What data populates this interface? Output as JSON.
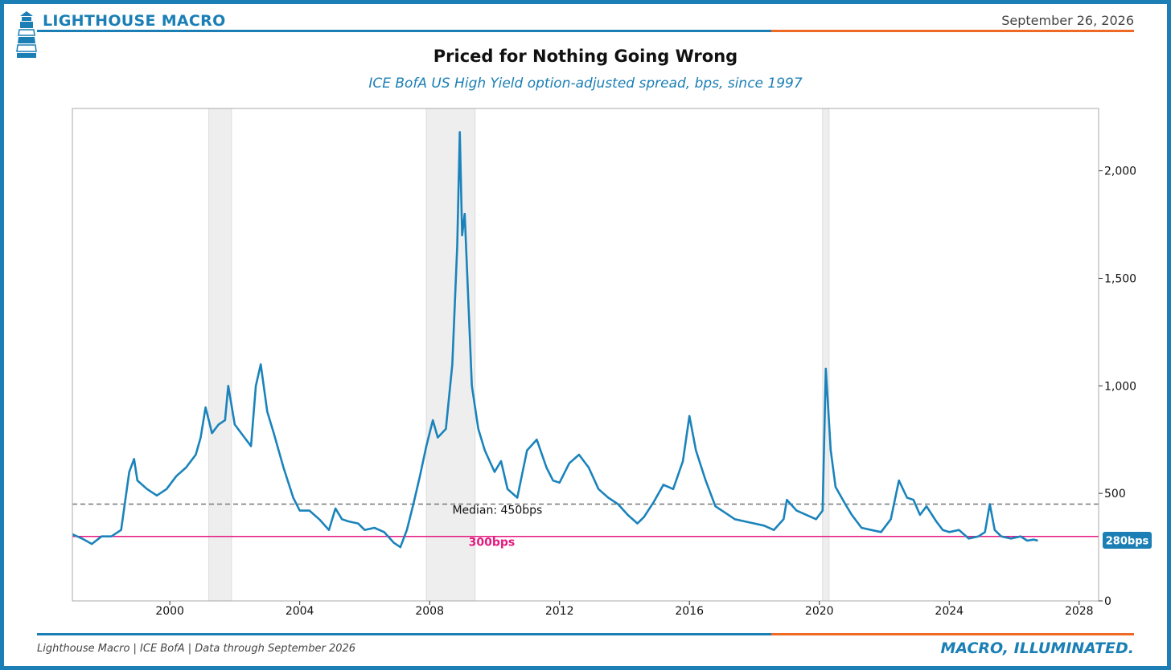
{
  "header": {
    "brand": "LIGHTHOUSE MACRO",
    "date": "September 26, 2026"
  },
  "footer": {
    "source": "Lighthouse Macro | ICE BofA | Data through September 2026",
    "tagline": "MACRO, ILLUMINATED."
  },
  "colors": {
    "brand_blue": "#1b7fb5",
    "accent_orange": "#ee6a24",
    "series": "#1a83bb",
    "threshold": "#e6187f",
    "median": "#777777",
    "recession": "#eeeeee"
  },
  "chart_data": {
    "type": "line",
    "title": "Priced for Nothing Going Wrong",
    "subtitle": "ICE BofA US High Yield option-adjusted spread, bps, since 1997",
    "xlabel": "",
    "ylabel": "",
    "xlim": [
      1997.0,
      2028.6
    ],
    "ylim": [
      0,
      2290
    ],
    "x_ticks": [
      2000,
      2004,
      2008,
      2012,
      2016,
      2020,
      2024,
      2028
    ],
    "x_tick_labels": [
      "2000",
      "2004",
      "2008",
      "2012",
      "2016",
      "2020",
      "2024",
      "2028"
    ],
    "y_ticks": [
      0,
      500,
      1000,
      1500,
      2000
    ],
    "y_tick_labels": [
      "0",
      "500",
      "1,000",
      "1,500",
      "2,000"
    ],
    "y_axis_side": "right",
    "grid": false,
    "recessions": [
      [
        2001.2,
        2001.9
      ],
      [
        2007.9,
        2009.4
      ],
      [
        2020.1,
        2020.3
      ]
    ],
    "reference_lines": [
      {
        "label": "Median: 450bps",
        "value": 450,
        "style": "dashed"
      },
      {
        "label": "300bps",
        "value": 300,
        "style": "solid"
      }
    ],
    "last_value_label": "280bps",
    "series": [
      {
        "x": [
          1997.0,
          1997.3,
          1997.6,
          1997.9,
          1998.2,
          1998.5,
          1998.75,
          1998.9,
          1999.0,
          1999.3,
          1999.6,
          1999.9,
          2000.2,
          2000.5,
          2000.8,
          2000.95,
          2001.1,
          2001.3,
          2001.5,
          2001.7,
          2001.8,
          2002.0,
          2002.3,
          2002.5,
          2002.65,
          2002.8,
          2003.0,
          2003.2,
          2003.5,
          2003.8,
          2004.0,
          2004.3,
          2004.6,
          2004.9,
          2005.1,
          2005.3,
          2005.5,
          2005.8,
          2006.0,
          2006.3,
          2006.6,
          2006.9,
          2007.1,
          2007.3,
          2007.5,
          2007.7,
          2007.9,
          2008.1,
          2008.25,
          2008.5,
          2008.7,
          2008.85,
          2008.93,
          2009.0,
          2009.08,
          2009.15,
          2009.3,
          2009.5,
          2009.7,
          2010.0,
          2010.2,
          2010.4,
          2010.7,
          2011.0,
          2011.3,
          2011.6,
          2011.8,
          2012.0,
          2012.3,
          2012.6,
          2012.9,
          2013.2,
          2013.5,
          2013.8,
          2014.1,
          2014.4,
          2014.6,
          2014.9,
          2015.2,
          2015.5,
          2015.8,
          2016.0,
          2016.2,
          2016.5,
          2016.8,
          2017.1,
          2017.4,
          2017.7,
          2018.0,
          2018.3,
          2018.6,
          2018.9,
          2019.0,
          2019.3,
          2019.6,
          2019.9,
          2020.1,
          2020.2,
          2020.35,
          2020.5,
          2020.8,
          2021.0,
          2021.3,
          2021.6,
          2021.9,
          2022.2,
          2022.45,
          2022.7,
          2022.9,
          2023.1,
          2023.3,
          2023.6,
          2023.8,
          2024.0,
          2024.3,
          2024.6,
          2024.9,
          2025.1,
          2025.25,
          2025.4,
          2025.6,
          2025.9,
          2026.2,
          2026.4,
          2026.6,
          2026.73
        ],
        "values": [
          310,
          290,
          265,
          300,
          300,
          330,
          600,
          660,
          560,
          520,
          490,
          520,
          580,
          620,
          680,
          760,
          900,
          780,
          820,
          840,
          1000,
          820,
          760,
          720,
          1000,
          1100,
          880,
          780,
          620,
          480,
          420,
          420,
          380,
          330,
          430,
          380,
          370,
          360,
          330,
          340,
          320,
          270,
          250,
          330,
          450,
          580,
          720,
          840,
          760,
          800,
          1100,
          1650,
          2180,
          1700,
          1800,
          1550,
          1000,
          800,
          700,
          600,
          650,
          520,
          480,
          700,
          750,
          620,
          560,
          550,
          640,
          680,
          620,
          520,
          480,
          450,
          400,
          360,
          390,
          460,
          540,
          520,
          650,
          860,
          700,
          560,
          440,
          410,
          380,
          370,
          360,
          350,
          330,
          380,
          470,
          420,
          400,
          380,
          420,
          1080,
          700,
          530,
          450,
          400,
          340,
          330,
          320,
          380,
          560,
          480,
          470,
          400,
          440,
          370,
          330,
          320,
          330,
          290,
          300,
          320,
          450,
          330,
          300,
          290,
          300,
          280,
          285,
          280
        ]
      }
    ]
  }
}
